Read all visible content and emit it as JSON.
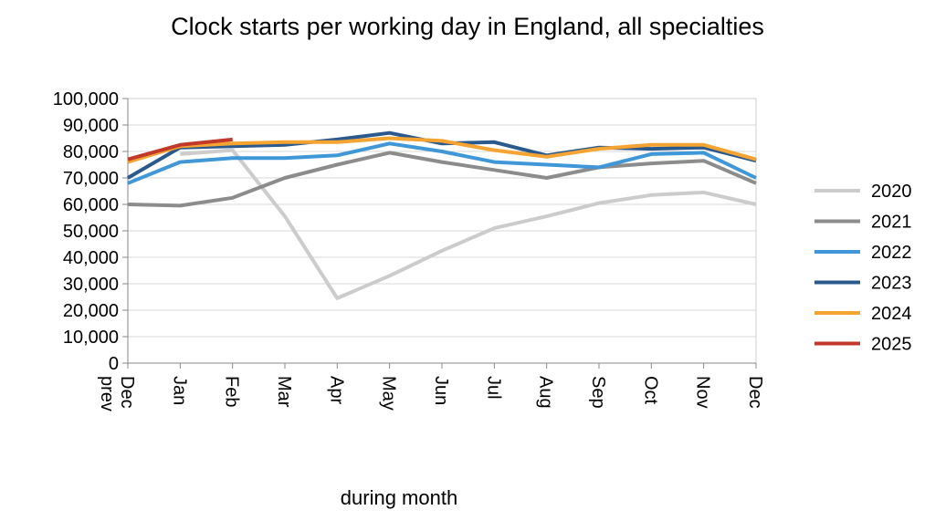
{
  "chart_data": {
    "type": "line",
    "title": "Clock starts per working day in England, all specialties",
    "xlabel": "during month",
    "ylabel": "",
    "ylim": [
      0,
      100000
    ],
    "yticks": [
      "0",
      "10,000",
      "20,000",
      "30,000",
      "40,000",
      "50,000",
      "60,000",
      "70,000",
      "80,000",
      "90,000",
      "100,000"
    ],
    "categories": [
      "Dec prev",
      "Jan",
      "Feb",
      "Mar",
      "Apr",
      "May",
      "Jun",
      "Jul",
      "Aug",
      "Sep",
      "Oct",
      "Nov",
      "Dec"
    ],
    "grid": true,
    "legend": "right",
    "series": [
      {
        "name": "2020",
        "color": "#cccccc",
        "values": [
          null,
          79000,
          80500,
          55500,
          24500,
          33000,
          42500,
          51000,
          55500,
          60500,
          63500,
          64500,
          60000
        ]
      },
      {
        "name": "2021",
        "color": "#8c8c8c",
        "values": [
          60000,
          59500,
          62500,
          70000,
          75000,
          79500,
          76000,
          73000,
          70000,
          74000,
          75500,
          76500,
          68000
        ]
      },
      {
        "name": "2022",
        "color": "#3f97d8",
        "values": [
          68000,
          76000,
          77500,
          77500,
          78500,
          83000,
          80000,
          76000,
          75000,
          74000,
          79000,
          79500,
          70000
        ]
      },
      {
        "name": "2023",
        "color": "#2a5a8d",
        "values": [
          70000,
          81500,
          82000,
          82500,
          84500,
          87000,
          83000,
          83500,
          78500,
          81500,
          81000,
          81500,
          76500
        ]
      },
      {
        "name": "2024",
        "color": "#f5a431",
        "values": [
          76000,
          82000,
          83000,
          83500,
          83500,
          85000,
          84000,
          80500,
          78000,
          81000,
          82500,
          82500,
          77000
        ]
      },
      {
        "name": "2025",
        "color": "#c0392b",
        "values": [
          77000,
          82500,
          84500,
          null,
          null,
          null,
          null,
          null,
          null,
          null,
          null,
          null,
          null
        ]
      }
    ]
  }
}
